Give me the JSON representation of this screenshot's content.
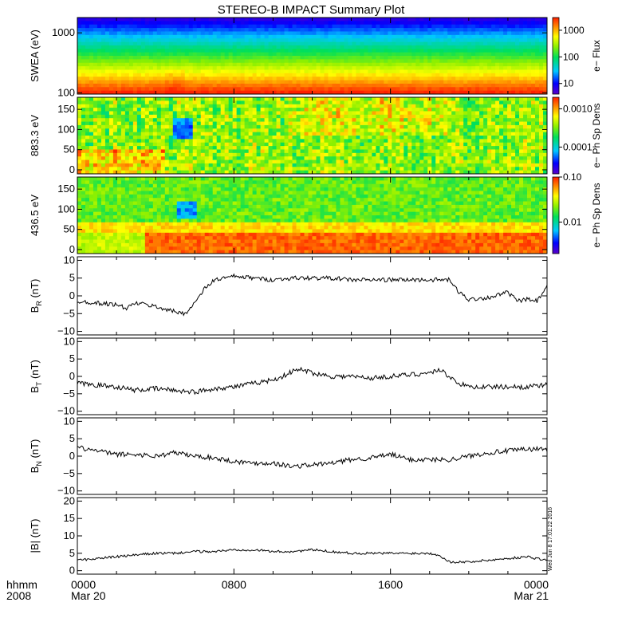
{
  "title": "STEREO-B IMPACT Summary Plot",
  "footer": {
    "row_label": "hhmm",
    "year": "2008",
    "timestamp": "Wed Jun 8 17:01:22 2016"
  },
  "time_axis": {
    "ticks": [
      {
        "hhmm": "0000",
        "date": "Mar 20",
        "hour": 0
      },
      {
        "hhmm": "0800",
        "date": "",
        "hour": 8
      },
      {
        "hhmm": "1600",
        "date": "",
        "hour": 16
      },
      {
        "hhmm": "0000",
        "date": "Mar 21",
        "hour": 24
      }
    ],
    "range_hours": [
      0,
      24
    ]
  },
  "colors": {
    "line": "#000000",
    "background": "#ffffff"
  },
  "chart_data": [
    {
      "id": "swea",
      "type": "heatmap",
      "ylabel": "SWEA (eV)",
      "yscale": "log",
      "ylim": [
        95,
        1800
      ],
      "yticks": [
        {
          "v": 100,
          "label": "100"
        },
        {
          "v": 1000,
          "label": "1000"
        }
      ],
      "colorbar": {
        "label": "e− Flux",
        "scale": "log",
        "range": [
          4,
          3000
        ],
        "ticks": [
          {
            "v": 10,
            "label": "10"
          },
          {
            "v": 100,
            "label": "100"
          },
          {
            "v": 1000,
            "label": "1000"
          }
        ]
      }
    },
    {
      "id": "pad883",
      "type": "heatmap",
      "ylabel": "883.3 eV",
      "ylim": [
        -10,
        180
      ],
      "yticks": [
        {
          "v": 0,
          "label": "0"
        },
        {
          "v": 50,
          "label": "50"
        },
        {
          "v": 100,
          "label": "100"
        },
        {
          "v": 150,
          "label": "150"
        }
      ],
      "colorbar": {
        "label": "e− Ph Sp Dens",
        "scale": "log",
        "range": [
          2e-05,
          0.002
        ],
        "ticks": [
          {
            "v": 0.0001,
            "label": "0.0001"
          },
          {
            "v": 0.001,
            "label": "0.0010"
          }
        ]
      }
    },
    {
      "id": "pad436",
      "type": "heatmap",
      "ylabel": "436.5 eV",
      "ylim": [
        -10,
        180
      ],
      "yticks": [
        {
          "v": 0,
          "label": "0"
        },
        {
          "v": 50,
          "label": "50"
        },
        {
          "v": 100,
          "label": "100"
        },
        {
          "v": 150,
          "label": "150"
        }
      ],
      "colorbar": {
        "label": "e− Ph Sp Dens",
        "scale": "log",
        "range": [
          0.002,
          0.1
        ],
        "ticks": [
          {
            "v": 0.01,
            "label": "0.01"
          },
          {
            "v": 0.1,
            "label": "0.10"
          }
        ]
      }
    },
    {
      "id": "br",
      "type": "line",
      "ylabel": "B",
      "ylabel_sub": "R",
      "ylabel_unit": "(nT)",
      "ylim": [
        -11,
        11
      ],
      "yticks": [
        {
          "v": -10,
          "label": "−10"
        },
        {
          "v": -5,
          "label": "−5"
        },
        {
          "v": 0,
          "label": "0"
        },
        {
          "v": 5,
          "label": "5"
        },
        {
          "v": 10,
          "label": "10"
        }
      ],
      "x": [
        0,
        1,
        2,
        2.5,
        3,
        4,
        5,
        5.5,
        6,
        6.5,
        7,
        8,
        9,
        10,
        11,
        12,
        13,
        14,
        15,
        16,
        17,
        18,
        19,
        19.5,
        20,
        21,
        22,
        22.5,
        23,
        23.5,
        24
      ],
      "y": [
        -1.5,
        -2,
        -2.5,
        -3.5,
        -2,
        -3,
        -4.5,
        -5,
        -2,
        2,
        4.5,
        5.5,
        5,
        4.5,
        5,
        5,
        5,
        4.5,
        4.5,
        4.5,
        4.5,
        4.5,
        4.5,
        1,
        -1,
        -0.5,
        1,
        -1.5,
        -1,
        -1.5,
        2.5
      ],
      "noise": 0.6
    },
    {
      "id": "bt",
      "type": "line",
      "ylabel": "B",
      "ylabel_sub": "T",
      "ylabel_unit": "(nT)",
      "ylim": [
        -11,
        11
      ],
      "yticks": [
        {
          "v": -10,
          "label": "−10"
        },
        {
          "v": -5,
          "label": "−5"
        },
        {
          "v": 0,
          "label": "0"
        },
        {
          "v": 5,
          "label": "5"
        },
        {
          "v": 10,
          "label": "10"
        }
      ],
      "x": [
        0,
        1,
        2,
        3,
        4,
        5,
        6,
        7,
        8,
        9,
        10,
        10.5,
        11,
        11.5,
        12,
        13,
        14,
        15,
        16,
        17,
        18,
        18.5,
        19,
        19.5,
        20,
        21,
        22,
        23,
        24
      ],
      "y": [
        -2,
        -2.5,
        -3,
        -4,
        -3.5,
        -4,
        -4.5,
        -3.5,
        -3,
        -2,
        -1,
        0,
        1.5,
        2,
        1,
        0,
        0,
        -0.5,
        0,
        0.5,
        1,
        2,
        0,
        -2,
        -3,
        -3,
        -3,
        -3,
        -2.5
      ],
      "noise": 0.7
    },
    {
      "id": "bn",
      "type": "line",
      "ylabel": "B",
      "ylabel_sub": "N",
      "ylabel_unit": "(nT)",
      "ylim": [
        -11,
        11
      ],
      "yticks": [
        {
          "v": -10,
          "label": "−10"
        },
        {
          "v": -5,
          "label": "−5"
        },
        {
          "v": 0,
          "label": "0"
        },
        {
          "v": 5,
          "label": "5"
        },
        {
          "v": 10,
          "label": "10"
        }
      ],
      "x": [
        0,
        1,
        2,
        3,
        4,
        5,
        6,
        7,
        8,
        9,
        10,
        11,
        12,
        13,
        14,
        15,
        16,
        17,
        18,
        19,
        20,
        21,
        22,
        23,
        24
      ],
      "y": [
        2.5,
        1.5,
        0.5,
        0.5,
        0,
        1,
        0,
        -0.5,
        -1.5,
        -2,
        -2,
        -3,
        -2.5,
        -2,
        -1,
        -0.5,
        0.5,
        -1,
        -1,
        -1,
        0,
        1,
        1.5,
        2,
        2
      ],
      "noise": 0.7
    },
    {
      "id": "bmag",
      "type": "line",
      "ylabel": "|B|",
      "ylabel_sub": "",
      "ylabel_unit": "(nT)",
      "ylim": [
        -1,
        21
      ],
      "yticks": [
        {
          "v": 0,
          "label": "0"
        },
        {
          "v": 5,
          "label": "5"
        },
        {
          "v": 10,
          "label": "10"
        },
        {
          "v": 15,
          "label": "15"
        },
        {
          "v": 20,
          "label": "20"
        }
      ],
      "x": [
        0,
        1,
        2,
        3,
        4,
        5,
        6,
        7,
        8,
        9,
        10,
        11,
        12,
        13,
        14,
        15,
        16,
        17,
        18,
        18.5,
        19,
        19.5,
        20,
        21,
        22,
        23,
        24
      ],
      "y": [
        3,
        3.5,
        4,
        4.5,
        5,
        5,
        5.5,
        5.5,
        6,
        6,
        5.5,
        5.5,
        6,
        5.5,
        5,
        5,
        5,
        5,
        5,
        4.5,
        2.5,
        2.5,
        2.5,
        3,
        3.5,
        4,
        3
      ],
      "noise": 0.35
    }
  ]
}
